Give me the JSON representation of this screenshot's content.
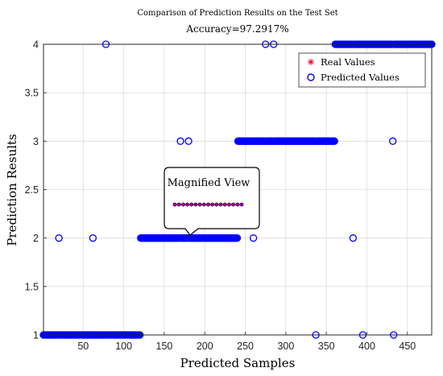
{
  "chart_data": {
    "type": "scatter",
    "title": "Comparison of Prediction Results on the Test Set",
    "subtitle": "Accuracy=97.2917%",
    "xlabel": "Predicted Samples",
    "ylabel": "Prediction Results",
    "xlim": [
      1,
      480
    ],
    "ylim": [
      1,
      4
    ],
    "xticks": [
      "50",
      "100",
      "150",
      "200",
      "250",
      "300",
      "350",
      "400",
      "450"
    ],
    "yticks": [
      "1",
      "1.5",
      "2",
      "2.5",
      "3",
      "3.5",
      "4"
    ],
    "grid": true,
    "legend_position": "top-right",
    "series": [
      {
        "name": "Real Values",
        "marker": "asterisk",
        "color": "#e8001c",
        "runs": [
          {
            "x_start": 1,
            "x_end": 120,
            "y": 1
          },
          {
            "x_start": 121,
            "x_end": 240,
            "y": 2
          },
          {
            "x_start": 241,
            "x_end": 360,
            "y": 3
          },
          {
            "x_start": 361,
            "x_end": 480,
            "y": 4
          }
        ]
      },
      {
        "name": "Predicted Values",
        "marker": "circle",
        "color": "#0000ff",
        "runs": [
          {
            "x_start": 1,
            "x_end": 120,
            "y": 1
          },
          {
            "x_start": 121,
            "x_end": 240,
            "y": 2
          },
          {
            "x_start": 241,
            "x_end": 360,
            "y": 3
          },
          {
            "x_start": 361,
            "x_end": 480,
            "y": 4
          }
        ],
        "misclassified": [
          {
            "x": 20,
            "y": 2
          },
          {
            "x": 62,
            "y": 2
          },
          {
            "x": 78,
            "y": 4
          },
          {
            "x": 170,
            "y": 3
          },
          {
            "x": 180,
            "y": 3
          },
          {
            "x": 260,
            "y": 2
          },
          {
            "x": 275,
            "y": 4
          },
          {
            "x": 285,
            "y": 4
          },
          {
            "x": 337,
            "y": 1
          },
          {
            "x": 383,
            "y": 2
          },
          {
            "x": 395,
            "y": 1
          },
          {
            "x": 432,
            "y": 3
          },
          {
            "x": 433,
            "y": 1
          }
        ]
      }
    ],
    "annotation": {
      "label": "Magnified View",
      "x_range": [
        165,
        245
      ],
      "y": 2
    },
    "axis_color": "#262626",
    "grid_color": "#dcdcdc"
  }
}
